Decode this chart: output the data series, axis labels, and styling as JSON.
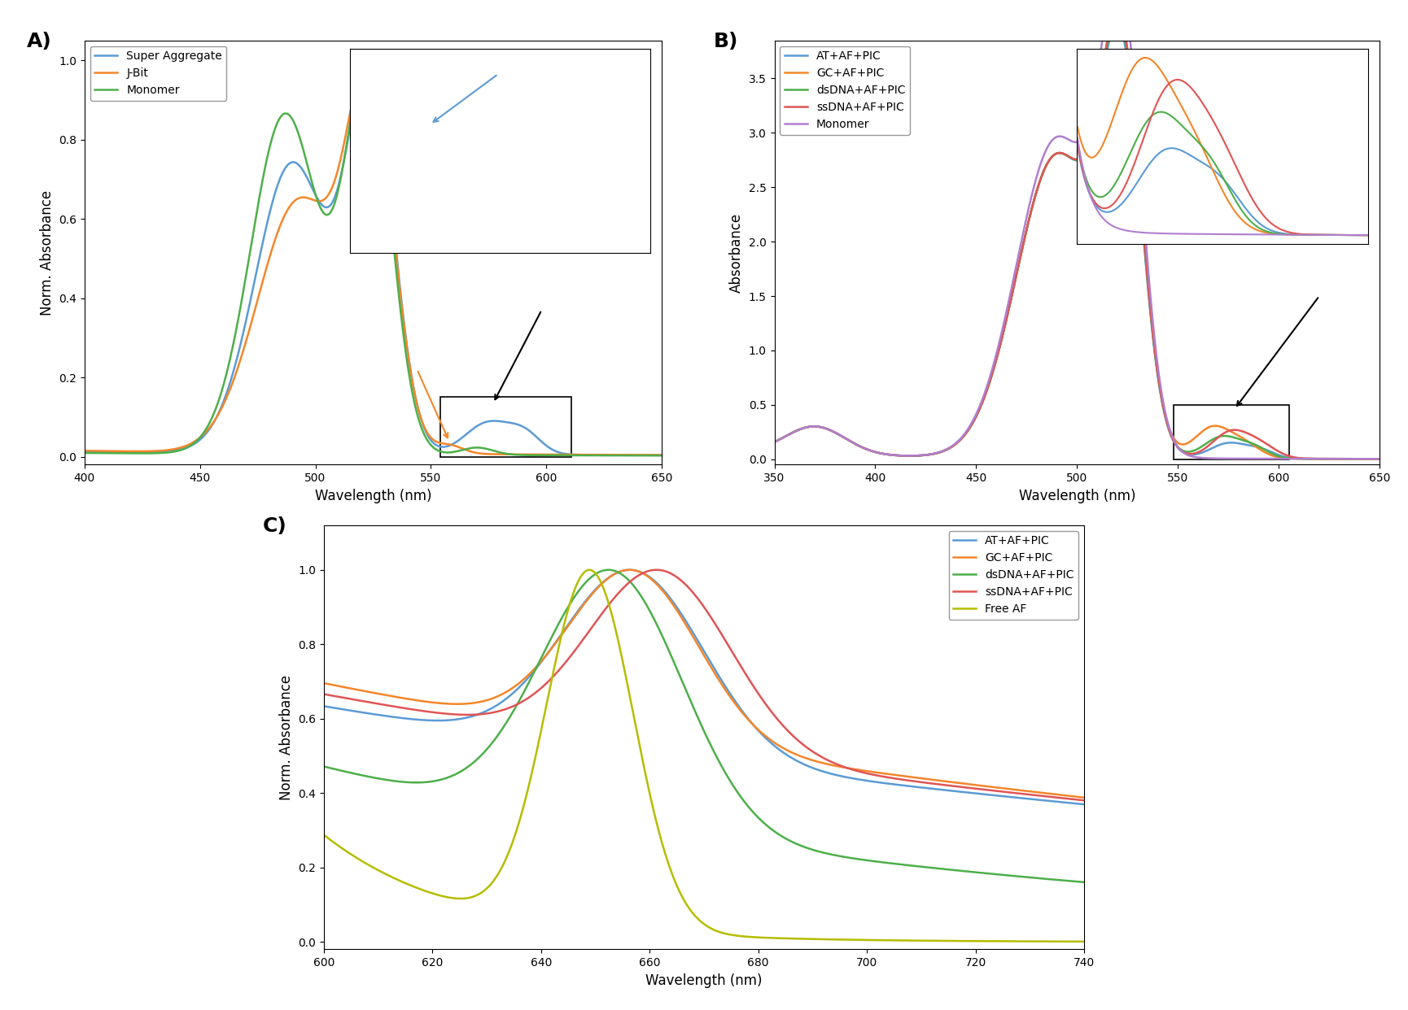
{
  "panel_A": {
    "title": "A)",
    "xlabel": "Wavelength (nm)",
    "ylabel": "Norm. Absorbance",
    "xlim": [
      400,
      650
    ],
    "ylim": [
      -0.02,
      1.05
    ],
    "yticks": [
      0.0,
      0.2,
      0.4,
      0.6,
      0.8,
      1.0
    ],
    "xticks": [
      400,
      450,
      500,
      550,
      600,
      650
    ],
    "colors": {
      "super_aggregate": "#5b9bd5",
      "j_bit": "#f4862a",
      "monomer": "#4daf4a"
    },
    "legend": [
      "Super Aggregate",
      "J-Bit",
      "Monomer"
    ]
  },
  "panel_B": {
    "title": "B)",
    "xlabel": "Wavelength (nm)",
    "ylabel": "Absorbance",
    "xlim": [
      350,
      650
    ],
    "ylim": [
      -0.05,
      3.85
    ],
    "yticks": [
      0.0,
      0.5,
      1.0,
      1.5,
      2.0,
      2.5,
      3.0,
      3.5
    ],
    "xticks": [
      350,
      400,
      450,
      500,
      550,
      600,
      650
    ],
    "colors": {
      "at": "#5b9bd5",
      "gc": "#f4862a",
      "dsdna": "#4daf4a",
      "ssdna": "#e05555",
      "monomer": "#b07ecf"
    },
    "legend": [
      "AT+AF+PIC",
      "GC+AF+PIC",
      "dsDNA+AF+PIC",
      "ssDNA+AF+PIC",
      "Monomer"
    ]
  },
  "panel_C": {
    "title": "C)",
    "xlabel": "Wavelength (nm)",
    "ylabel": "Norm. Absorbance",
    "xlim": [
      600,
      740
    ],
    "ylim": [
      -0.02,
      1.12
    ],
    "yticks": [
      0.0,
      0.2,
      0.4,
      0.6,
      0.8,
      1.0
    ],
    "xticks": [
      600,
      620,
      640,
      660,
      680,
      700,
      720,
      740
    ],
    "colors": {
      "at": "#5b9bd5",
      "gc": "#f4862a",
      "dsdna": "#4daf4a",
      "ssdna": "#e05555",
      "free_af": "#b5bd00"
    },
    "legend": [
      "AT+AF+PIC",
      "GC+AF+PIC",
      "dsDNA+AF+PIC",
      "ssDNA+AF+PIC",
      "Free AF"
    ]
  }
}
